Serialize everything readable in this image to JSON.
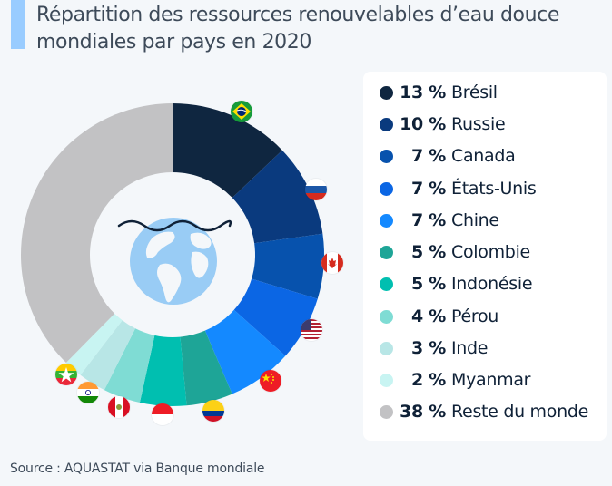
{
  "title": "Répartition des ressources renouvelables d’eau douce mondiales par pays en 2020",
  "source": "Source : AQUASTAT via Banque mondiale",
  "center_icon": "globe-water-icon",
  "chart_data": {
    "type": "pie",
    "variant": "donut",
    "title": "Répartition des ressources renouvelables d’eau douce mondiales par pays en 2020",
    "unit": "%",
    "start": "top",
    "direction": "clockwise",
    "legend_position": "right",
    "slices": [
      {
        "label": "Brésil",
        "value": 13,
        "pct_text": "13 %",
        "color": "#0f2640",
        "flag": "brazil-flag-icon"
      },
      {
        "label": "Russie",
        "value": 10,
        "pct_text": "10 %",
        "color": "#0a3a7e",
        "flag": "russia-flag-icon"
      },
      {
        "label": "Canada",
        "value": 7,
        "pct_text": "7 %",
        "color": "#0752ad",
        "flag": "canada-flag-icon"
      },
      {
        "label": "États-Unis",
        "value": 7,
        "pct_text": "7 %",
        "color": "#0b66e4",
        "flag": "usa-flag-icon"
      },
      {
        "label": "Chine",
        "value": 7,
        "pct_text": "7 %",
        "color": "#1489ff",
        "flag": "china-flag-icon"
      },
      {
        "label": "Colombie",
        "value": 5,
        "pct_text": "5 %",
        "color": "#1ea597",
        "flag": "colombia-flag-icon"
      },
      {
        "label": "Indonésie",
        "value": 5,
        "pct_text": "5 %",
        "color": "#00bfb0",
        "flag": "indonesia-flag-icon"
      },
      {
        "label": "Pérou",
        "value": 4,
        "pct_text": "4 %",
        "color": "#7fdcd4",
        "flag": "peru-flag-icon"
      },
      {
        "label": "Inde",
        "value": 3,
        "pct_text": "3 %",
        "color": "#b8e6e6",
        "flag": "india-flag-icon"
      },
      {
        "label": "Myanmar",
        "value": 2,
        "pct_text": "2 %",
        "color": "#c8f4f2",
        "flag": "myanmar-flag-icon"
      },
      {
        "label": "Reste du monde",
        "value": 38,
        "pct_text": "38 %",
        "color": "#c2c2c4",
        "flag": null
      }
    ]
  }
}
